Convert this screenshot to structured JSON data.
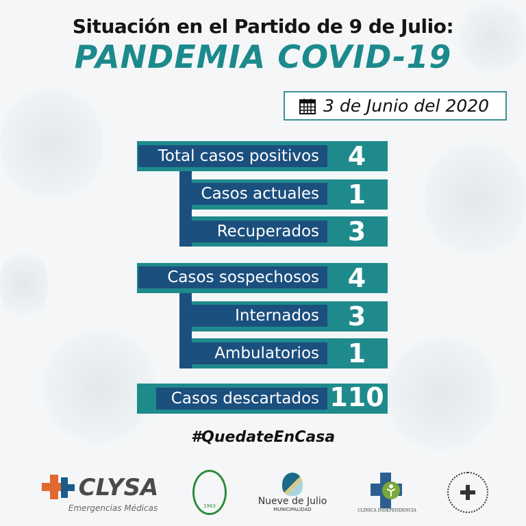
{
  "header": {
    "line1": "Situación en el Partido de 9 de Julio:",
    "line2": "PANDEMIA COVID-19"
  },
  "date": {
    "icon": "calendar-icon",
    "text": "3 de Junio del 2020"
  },
  "groups": [
    {
      "main": {
        "label": "Total casos positivos",
        "value": "4"
      },
      "subs": [
        {
          "label": "Casos actuales",
          "value": "1"
        },
        {
          "label": "Recuperados",
          "value": "3"
        }
      ]
    },
    {
      "main": {
        "label": "Casos sospechosos",
        "value": "4"
      },
      "subs": [
        {
          "label": "Internados",
          "value": "3"
        },
        {
          "label": "Ambulatorios",
          "value": "1"
        }
      ]
    },
    {
      "main": {
        "label": "Casos descartados",
        "value": "110"
      }
    }
  ],
  "hashtag": "#QuedateEnCasa",
  "logos": [
    {
      "name": "CLYSA",
      "sub": "Emergencias Médicas"
    },
    {
      "name": "Círculo Médico",
      "year": "1963"
    },
    {
      "name": "Nueve de Julio",
      "sub": "MUNICIPALIDAD"
    },
    {
      "name": "CLÍNICA INDEPENDENCIA"
    },
    {
      "name": "seal-logo"
    }
  ],
  "colors": {
    "teal": "#1f8a8c",
    "navy": "#1b4f7e",
    "orange": "#e0692f"
  }
}
